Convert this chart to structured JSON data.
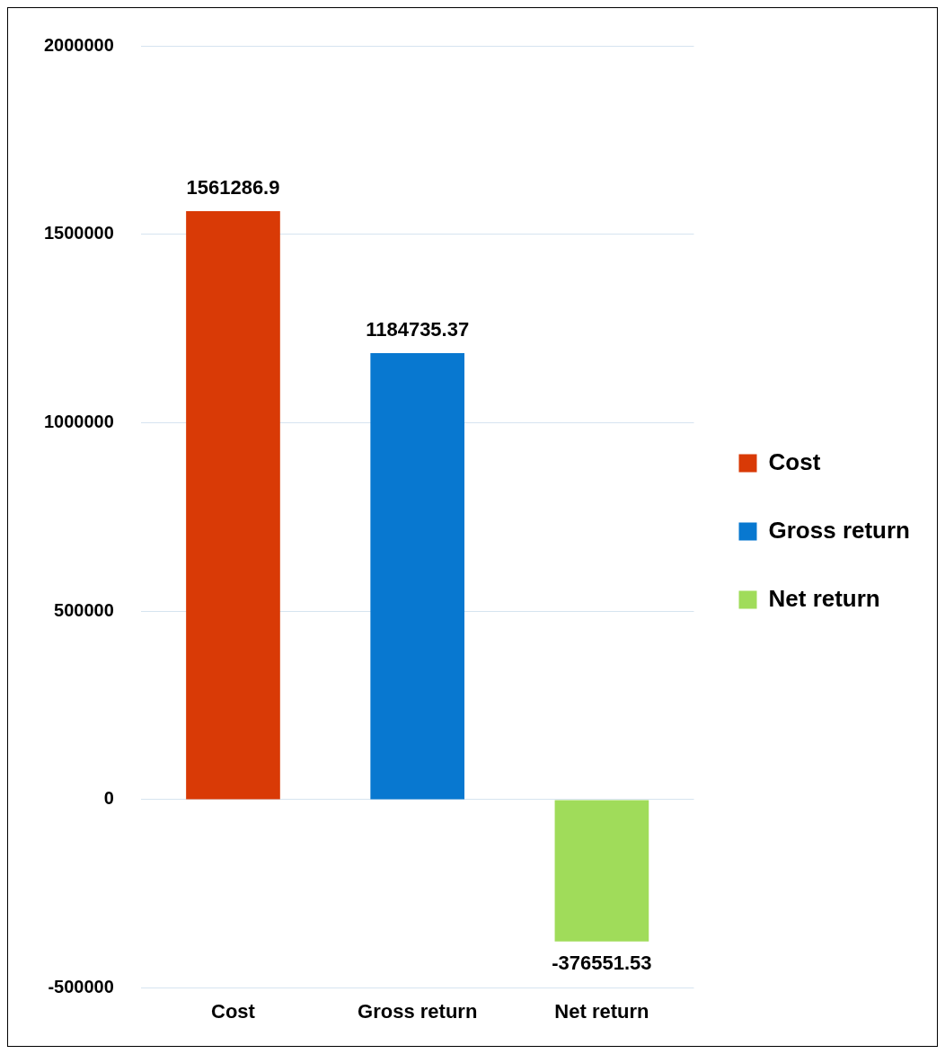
{
  "chart_data": {
    "type": "bar",
    "categories": [
      "Cost",
      "Gross return",
      "Net return"
    ],
    "series": [
      {
        "name": "Cost",
        "color": "#d93a06",
        "values": [
          1561286.9,
          null,
          null
        ]
      },
      {
        "name": "Gross return",
        "color": "#0878d0",
        "values": [
          null,
          1184735.37,
          null
        ]
      },
      {
        "name": "Net return",
        "color": "#a0dc5a",
        "values": [
          null,
          null,
          -376551.53
        ]
      }
    ],
    "ylim": [
      -500000,
      2000000
    ],
    "yticks": [
      -500000,
      0,
      500000,
      1000000,
      1500000,
      2000000
    ],
    "grid": "y",
    "legend": "right",
    "data_labels": true
  }
}
